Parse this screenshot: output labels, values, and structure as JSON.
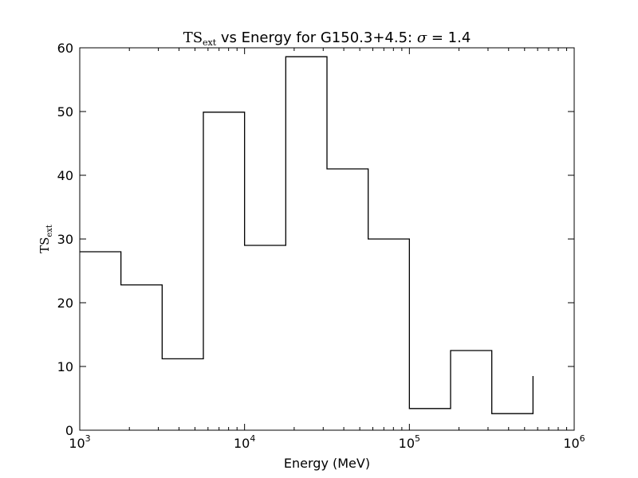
{
  "chart_data": {
    "type": "line",
    "style": "step",
    "title": {
      "prefix": "TS",
      "prefix_subscript": "ext",
      "middle": " vs Energy for G150.3+4.5: ",
      "sigma_symbol": "σ",
      "suffix": " = 1.4"
    },
    "xlabel": "Energy (MeV)",
    "ylabel": {
      "main": "TS",
      "subscript": "ext"
    },
    "x_scale": "log",
    "xlim": [
      1000,
      1000000
    ],
    "ylim": [
      0,
      60
    ],
    "x_ticks": [
      {
        "base": "10",
        "exp": "3",
        "value": 1000
      },
      {
        "base": "10",
        "exp": "4",
        "value": 10000
      },
      {
        "base": "10",
        "exp": "5",
        "value": 100000
      },
      {
        "base": "10",
        "exp": "6",
        "value": 1000000
      }
    ],
    "y_ticks": [
      0,
      10,
      20,
      30,
      40,
      50,
      60
    ],
    "bin_edges": [
      1000,
      1778,
      3162,
      5623,
      10000,
      17783,
      31623,
      56234,
      100000,
      177828,
      316228,
      562341
    ],
    "values": [
      28.0,
      22.8,
      11.2,
      49.9,
      29.0,
      58.6,
      41.0,
      30.0,
      3.4,
      12.5,
      2.6
    ],
    "last_edge_value": 8.5,
    "grid": false,
    "line_color": "#000000"
  }
}
